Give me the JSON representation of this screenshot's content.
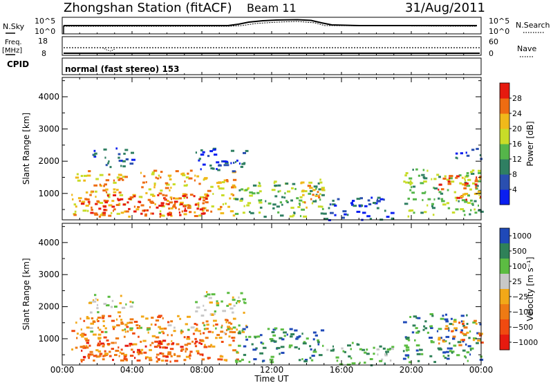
{
  "header": {
    "station": "Zhongshan Station (fitACF)",
    "beam": "Beam 11",
    "date": "31/Aug/2011"
  },
  "top_panels": {
    "nsky_label": "N.Sky",
    "nsky_ticks": [
      "10^5",
      "10^0"
    ],
    "nsearch_label": "N.Search",
    "nsearch_ticks": [
      "10^5",
      "10^0"
    ],
    "freq_label_1": "Freq.",
    "freq_label_2": "[MHz]",
    "freq_ticks": [
      "18",
      "8"
    ],
    "nave_label": "Nave",
    "nave_ticks": [
      "60",
      "0"
    ],
    "cpid_label": "CPID",
    "cpid_text": "normal (fast stereo) 153"
  },
  "chart_data": [
    {
      "type": "heatmap",
      "name": "power",
      "xlabel": "Time UT",
      "ylabel": "Slant Range [km]",
      "xlim": [
        0,
        24
      ],
      "ylim": [
        180,
        4600
      ],
      "xticks": [
        "00:00",
        "04:00",
        "08:00",
        "12:00",
        "16:00",
        "20:00",
        "00:00"
      ],
      "yticks": [
        1000,
        2000,
        3000,
        4000
      ],
      "colorbar": {
        "label": "Power [dB]",
        "range": [
          0,
          32
        ],
        "ticks": [
          "4",
          "8",
          "12",
          "16",
          "20",
          "24",
          "28"
        ],
        "colors": [
          "#0a1ef0",
          "#2a4fb0",
          "#2f7f62",
          "#55b64a",
          "#c8dc28",
          "#f0b91a",
          "#ee6c12",
          "#e61a0f"
        ]
      },
      "echo_regions": [
        {
          "t": [
            0.5,
            10.0
          ],
          "r": [
            300,
            1750
          ],
          "level": 5
        },
        {
          "t": [
            1.0,
            8.5
          ],
          "r": [
            350,
            1000
          ],
          "level": 7
        },
        {
          "t": [
            5.8,
            7.2
          ],
          "r": [
            350,
            1000
          ],
          "level": 7
        },
        {
          "t": [
            1.5,
            4.0
          ],
          "r": [
            1850,
            2450
          ],
          "level": 1
        },
        {
          "t": [
            7.5,
            10.5
          ],
          "r": [
            1700,
            2500
          ],
          "level": 1
        },
        {
          "t": [
            9.8,
            15.0
          ],
          "r": [
            300,
            1400
          ],
          "level": 3
        },
        {
          "t": [
            13.5,
            15.0
          ],
          "r": [
            500,
            1500
          ],
          "level": 5
        },
        {
          "t": [
            15.0,
            19.0
          ],
          "r": [
            200,
            900
          ],
          "level": 1
        },
        {
          "t": [
            19.5,
            24.0
          ],
          "r": [
            300,
            1800
          ],
          "level": 3
        },
        {
          "t": [
            21.5,
            24.0
          ],
          "r": [
            800,
            1600
          ],
          "level": 6
        },
        {
          "t": [
            22.5,
            24.0
          ],
          "r": [
            2100,
            2500
          ],
          "level": 1
        }
      ]
    },
    {
      "type": "heatmap",
      "name": "velocity",
      "xlabel": "Time UT",
      "ylabel": "Slant Range [km]",
      "xlim": [
        0,
        24
      ],
      "ylim": [
        180,
        4600
      ],
      "xticks": [
        "00:00",
        "04:00",
        "08:00",
        "12:00",
        "16:00",
        "20:00",
        "00:00"
      ],
      "yticks": [
        1000,
        2000,
        3000,
        4000
      ],
      "colorbar": {
        "label": "Velocity [m s⁻¹]",
        "range": [
          -1250,
          1250
        ],
        "ticks": [
          "1000",
          "500",
          "100",
          "25",
          "−25",
          "−100",
          "−500",
          "−1000"
        ],
        "colors": [
          "#1f49b8",
          "#2f8158",
          "#5cbc42",
          "#c8c8c8",
          "#f2a818",
          "#ee7a14",
          "#f04a10",
          "#e61a0f"
        ]
      },
      "echo_regions": [
        {
          "t": [
            0.5,
            10.0
          ],
          "r": [
            300,
            1750
          ],
          "level": 5
        },
        {
          "t": [
            1.0,
            8.5
          ],
          "r": [
            350,
            1000
          ],
          "level": 6
        },
        {
          "t": [
            1.5,
            10.5
          ],
          "r": [
            1200,
            1450
          ],
          "level": 3
        },
        {
          "t": [
            1.5,
            4.0
          ],
          "r": [
            1850,
            2450
          ],
          "level": 3
        },
        {
          "t": [
            7.5,
            10.5
          ],
          "r": [
            1700,
            2500
          ],
          "level": 3
        },
        {
          "t": [
            9.8,
            15.0
          ],
          "r": [
            300,
            1400
          ],
          "level": 1
        },
        {
          "t": [
            15.0,
            19.0
          ],
          "r": [
            200,
            900
          ],
          "level": 2
        },
        {
          "t": [
            19.5,
            24.0
          ],
          "r": [
            300,
            1800
          ],
          "level": 1
        },
        {
          "t": [
            21.5,
            24.0
          ],
          "r": [
            800,
            1600
          ],
          "level": 5
        }
      ]
    }
  ]
}
